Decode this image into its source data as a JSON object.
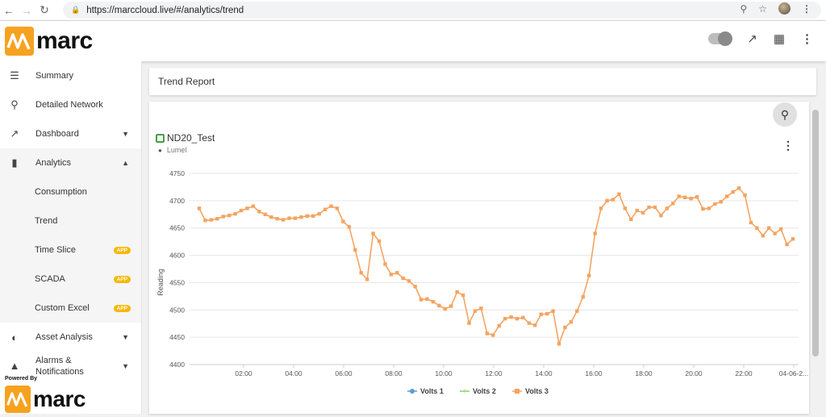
{
  "browser": {
    "url": "https://marccloud.live/#/analytics/trend"
  },
  "app": {
    "logo_text": "marc",
    "powered_by": "Powered By",
    "footer_logo_text": "marc"
  },
  "sidebar": {
    "items": [
      {
        "label": "Summary",
        "icon": "list-icon"
      },
      {
        "label": "Detailed Network",
        "icon": "network-icon"
      },
      {
        "label": "Dashboard",
        "icon": "trend-icon"
      },
      {
        "label": "Analytics",
        "icon": "bar-chart-icon"
      },
      {
        "label": "Consumption"
      },
      {
        "label": "Trend"
      },
      {
        "label": "Time Slice",
        "badge": "APP"
      },
      {
        "label": "SCADA",
        "badge": "APP"
      },
      {
        "label": "Custom Excel",
        "badge": "APP"
      },
      {
        "label": "Asset Analysis",
        "icon": "pie-icon"
      },
      {
        "label": "Alarms & Notifications",
        "icon": "bell-icon"
      }
    ]
  },
  "report": {
    "title": "Trend Report",
    "device_name": "ND20_Test",
    "location": "Lumel"
  },
  "chart_data": {
    "type": "line",
    "ylabel": "Reading",
    "ylim": [
      4400,
      4750
    ],
    "yticks": [
      4400,
      4450,
      4500,
      4550,
      4600,
      4650,
      4700,
      4750
    ],
    "xticks": [
      "02:00",
      "04:00",
      "06:00",
      "08:00",
      "10:00",
      "12:00",
      "14:00",
      "16:00",
      "18:00",
      "20:00",
      "22:00",
      "04-06-2..."
    ],
    "legend_position": "bottom",
    "series": [
      {
        "name": "Volts 1",
        "color": "#5b9bd5",
        "values": []
      },
      {
        "name": "Volts 2",
        "color": "#7ed957",
        "values": []
      },
      {
        "name": "Volts 3",
        "color": "#f4a460",
        "values": [
          4686,
          4664,
          4665,
          4667,
          4671,
          4673,
          4676,
          4682,
          4686,
          4690,
          4680,
          4675,
          4670,
          4667,
          4665,
          4668,
          4668,
          4670,
          4672,
          4672,
          4676,
          4684,
          4690,
          4686,
          4662,
          4652,
          4610,
          4568,
          4556,
          4640,
          4626,
          4584,
          4565,
          4568,
          4558,
          4553,
          4543,
          4519,
          4520,
          4515,
          4508,
          4502,
          4507,
          4533,
          4527,
          4476,
          4498,
          4503,
          4457,
          4454,
          4471,
          4484,
          4487,
          4484,
          4486,
          4476,
          4472,
          4492,
          4493,
          4498,
          4438,
          4468,
          4478,
          4498,
          4524,
          4563,
          4640,
          4686,
          4700,
          4702,
          4712,
          4686,
          4666,
          4682,
          4678,
          4688,
          4688,
          4673,
          4686,
          4695,
          4708,
          4706,
          4704,
          4707,
          4685,
          4686,
          4694,
          4698,
          4708,
          4716,
          4723,
          4710,
          4660,
          4650,
          4636,
          4650,
          4640,
          4648,
          4620,
          4630
        ]
      }
    ]
  }
}
